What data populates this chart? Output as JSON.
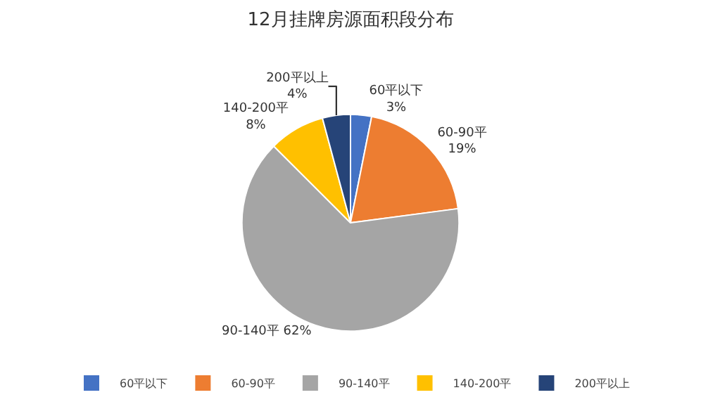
{
  "chart_data": {
    "type": "pie",
    "title": "12月挂牌房源面积段分布",
    "categories": [
      "60平以下",
      "60-90平",
      "90-140平",
      "140-200平",
      "200平以上"
    ],
    "values": [
      3,
      19,
      62,
      8,
      4
    ],
    "value_labels": [
      "3%",
      "19%",
      "62%",
      "8%",
      "4%"
    ],
    "colors": [
      "#4472c4",
      "#ed7d31",
      "#a5a5a5",
      "#ffc000",
      "#264478"
    ],
    "legend": "bottom"
  }
}
